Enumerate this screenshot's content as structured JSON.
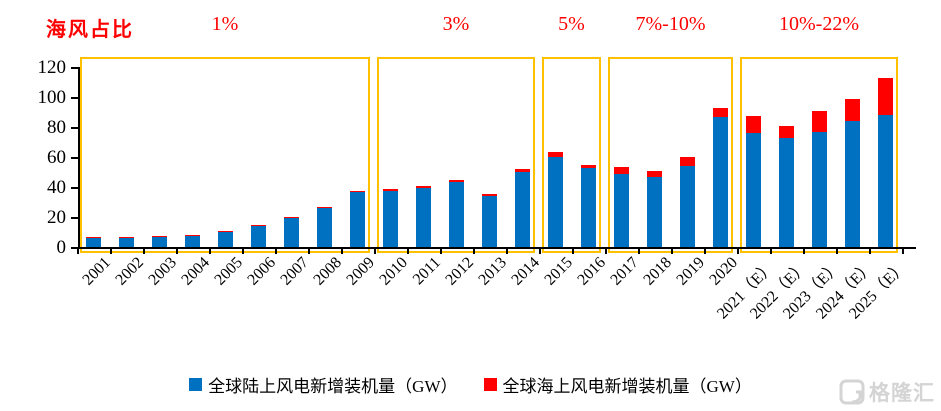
{
  "header": {
    "share_title": "海风占比"
  },
  "chart_data": {
    "type": "bar",
    "stacked": true,
    "title": "",
    "xlabel": "",
    "ylabel": "",
    "unit": "GW",
    "ylim": [
      0,
      120
    ],
    "yticks": [
      0,
      20,
      40,
      60,
      80,
      100,
      120
    ],
    "grid": false,
    "legend_position": "bottom",
    "highlight_box_color": "#FFC000",
    "categories": [
      "2001",
      "2002",
      "2003",
      "2004",
      "2005",
      "2006",
      "2007",
      "2008",
      "2009",
      "2010",
      "2011",
      "2012",
      "2013",
      "2014",
      "2015",
      "2016",
      "2017",
      "2018",
      "2019",
      "2020",
      "2021（E）",
      "2022（E）",
      "2023（E）",
      "2024（E）",
      "2025（E）"
    ],
    "series": [
      {
        "name": "全球陆上风电新增装机量（GW）",
        "color": "#0070C0",
        "values": [
          6.3,
          6.8,
          7.1,
          7.9,
          10.8,
          14.5,
          19.6,
          26.2,
          37.0,
          37.3,
          39.5,
          43.5,
          34.3,
          50.3,
          60.0,
          52.5,
          48.9,
          46.5,
          54.0,
          86.5,
          76.0,
          73.0,
          77.0,
          84.0,
          88.0
        ]
      },
      {
        "name": "全球海上风电新增装机量（GW）",
        "color": "#FF0000",
        "values": [
          0.1,
          0.2,
          0.5,
          0.1,
          0.2,
          0.5,
          0.4,
          0.6,
          0.6,
          1.2,
          1.0,
          1.3,
          1.0,
          1.4,
          3.5,
          2.2,
          4.3,
          4.5,
          6.2,
          6.5,
          11.5,
          8.0,
          13.5,
          14.5,
          24.5
        ]
      }
    ],
    "groups": [
      {
        "share_label": "1%",
        "start": "2001",
        "end": "2009"
      },
      {
        "share_label": "3%",
        "start": "2010",
        "end": "2014"
      },
      {
        "share_label": "5%",
        "start": "2015",
        "end": "2016"
      },
      {
        "share_label": "7%-10%",
        "start": "2017",
        "end": "2020"
      },
      {
        "share_label": "10%-22%",
        "start": "2021（E）",
        "end": "2025（E）"
      }
    ]
  },
  "watermark": {
    "text": "格隆汇",
    "logo": "gelonghui-logo"
  }
}
